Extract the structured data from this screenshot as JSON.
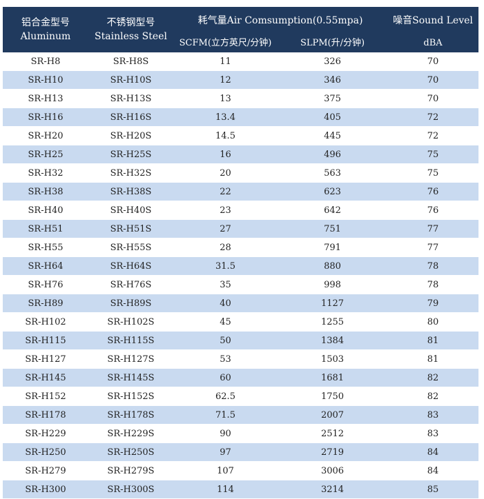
{
  "headers": {
    "aluminum_cn": "铝合金型号",
    "aluminum_en": "Aluminum",
    "stainless_cn": "不锈钢型号",
    "stainless_en": "Stainless Steel",
    "air": "耗气量Air Comsumption(0.55mpa)",
    "scfm": "SCFM(立方英尺/分钟)",
    "slpm": "SLPM(升/分钟)",
    "sound": "噪音Sound Level",
    "dba": "dBA"
  },
  "rows": [
    [
      "SR-H8",
      "SR-H8S",
      "11",
      "326",
      "70"
    ],
    [
      "SR-H10",
      "SR-H10S",
      "12",
      "346",
      "70"
    ],
    [
      "SR-H13",
      "SR-H13S",
      "13",
      "375",
      "70"
    ],
    [
      "SR-H16",
      "SR-H16S",
      "13.4",
      "405",
      "72"
    ],
    [
      "SR-H20",
      "SR-H20S",
      "14.5",
      "445",
      "72"
    ],
    [
      "SR-H25",
      "SR-H25S",
      "16",
      "496",
      "75"
    ],
    [
      "SR-H32",
      "SR-H32S",
      "20",
      "563",
      "75"
    ],
    [
      "SR-H38",
      "SR-H38S",
      "22",
      "623",
      "76"
    ],
    [
      "SR-H40",
      "SR-H40S",
      "23",
      "642",
      "76"
    ],
    [
      "SR-H51",
      "SR-H51S",
      "27",
      "751",
      "77"
    ],
    [
      "SR-H55",
      "SR-H55S",
      "28",
      "791",
      "77"
    ],
    [
      "SR-H64",
      "SR-H64S",
      "31.5",
      "880",
      "78"
    ],
    [
      "SR-H76",
      "SR-H76S",
      "35",
      "998",
      "78"
    ],
    [
      "SR-H89",
      "SR-H89S",
      "40",
      "1127",
      "79"
    ],
    [
      "SR-H102",
      "SR-H102S",
      "45",
      "1255",
      "80"
    ],
    [
      "SR-H115",
      "SR-H115S",
      "50",
      "1384",
      "81"
    ],
    [
      "SR-H127",
      "SR-H127S",
      "53",
      "1503",
      "81"
    ],
    [
      "SR-H145",
      "SR-H145S",
      "60",
      "1681",
      "82"
    ],
    [
      "SR-H152",
      "SR-H152S",
      "62.5",
      "1750",
      "82"
    ],
    [
      "SR-H178",
      "SR-H178S",
      "71.5",
      "2007",
      "83"
    ],
    [
      "SR-H229",
      "SR-H229S",
      "90",
      "2512",
      "83"
    ],
    [
      "SR-H250",
      "SR-H250S",
      "97",
      "2719",
      "84"
    ],
    [
      "SR-H279",
      "SR-H279S",
      "107",
      "3006",
      "84"
    ],
    [
      "SR-H300",
      "SR-H300S",
      "114",
      "3214",
      "85"
    ]
  ]
}
